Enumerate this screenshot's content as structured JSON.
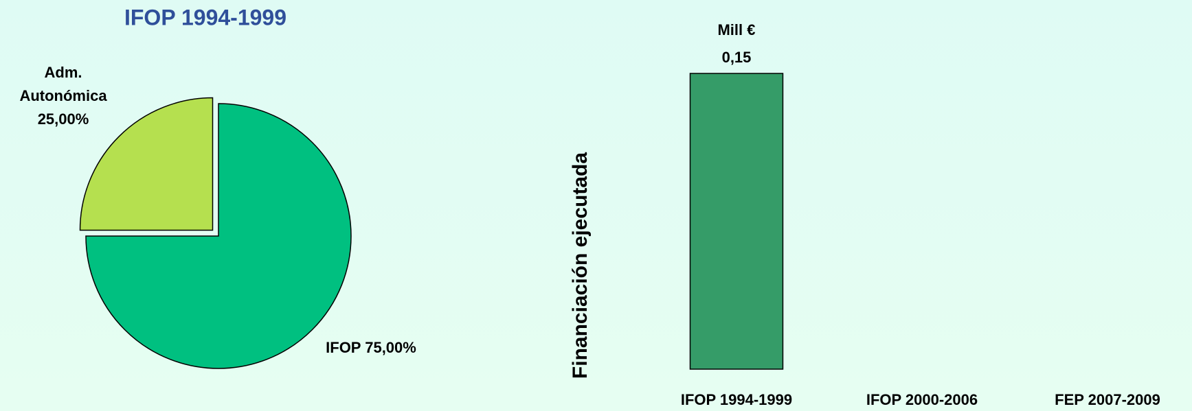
{
  "chart_data": [
    {
      "type": "pie",
      "title": "IFOP 1994-1999",
      "categories": [
        "Adm. Autonómica",
        "IFOP"
      ],
      "values": [
        25,
        75
      ],
      "value_labels": [
        "25,00%",
        "75,00%"
      ],
      "colors": [
        "#b5e04f",
        "#00c080"
      ]
    },
    {
      "type": "bar",
      "y_label": "Financiación ejecutada",
      "annotation": "Mill €",
      "categories": [
        "IFOP 1994-1999",
        "IFOP 2000-2006",
        "FEP 2007-2009"
      ],
      "values": [
        0.15,
        null,
        null
      ],
      "value_labels": [
        "0,15",
        null,
        null
      ],
      "color": "#359c68",
      "ylim": [
        0,
        0.15
      ]
    }
  ]
}
